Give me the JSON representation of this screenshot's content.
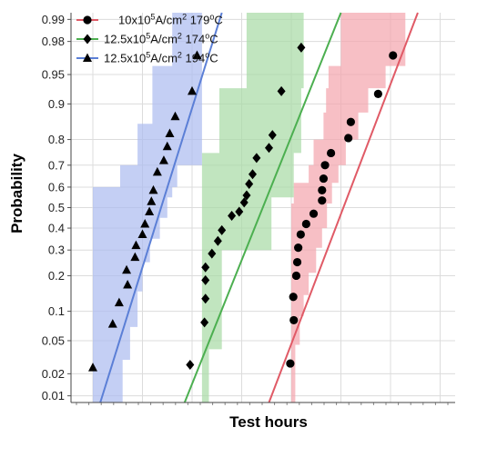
{
  "chart_data": {
    "type": "scatter",
    "title": "",
    "xlabel": "Test hours",
    "ylabel": "Probability",
    "x_scale": "log",
    "x_tick_labels": [],
    "y_scale": "normal-probability",
    "y_ticks": [
      0.01,
      0.02,
      0.05,
      0.1,
      0.2,
      0.3,
      0.4,
      0.5,
      0.6,
      0.7,
      0.8,
      0.9,
      0.95,
      0.98,
      0.99
    ],
    "y_tick_labels": [
      "0.01",
      "0.02",
      "0.05",
      "0.1",
      "0.2",
      "0.3",
      "0.4",
      "0.5",
      "0.6",
      "0.7",
      "0.8",
      "0.9",
      "0.95",
      "0.98",
      "0.99"
    ],
    "x_unit_note": "x values are unitless positions on an unlabeled log time axis (1 = first minor tick)",
    "xlim": [
      1,
      7.8
    ],
    "ylim": [
      0.008,
      0.992
    ],
    "grid": true,
    "legend_position": "top-left",
    "series": [
      {
        "legend_main": "10x10",
        "legend_sup": "5",
        "legend_mid": "A/cm",
        "legend_sup2": "2",
        "legend_temp": " 179",
        "legend_sup3": "o",
        "legend_end": "C",
        "marker": "circle",
        "color": "#000000",
        "line_color": "#e05a66",
        "band_color": "#f4a6ae",
        "fit_line": {
          "x": [
            4.55,
            7.55
          ],
          "p": [
            0.006,
            0.995
          ]
        },
        "points": [
          {
            "x": 4.98,
            "p": 0.027
          },
          {
            "x": 5.05,
            "p": 0.082
          },
          {
            "x": 5.04,
            "p": 0.135
          },
          {
            "x": 5.1,
            "p": 0.2
          },
          {
            "x": 5.12,
            "p": 0.25
          },
          {
            "x": 5.14,
            "p": 0.31
          },
          {
            "x": 5.19,
            "p": 0.37
          },
          {
            "x": 5.3,
            "p": 0.42
          },
          {
            "x": 5.45,
            "p": 0.47
          },
          {
            "x": 5.62,
            "p": 0.535
          },
          {
            "x": 5.62,
            "p": 0.585
          },
          {
            "x": 5.65,
            "p": 0.64
          },
          {
            "x": 5.68,
            "p": 0.7
          },
          {
            "x": 5.8,
            "p": 0.75
          },
          {
            "x": 6.15,
            "p": 0.805
          },
          {
            "x": 6.2,
            "p": 0.855
          },
          {
            "x": 6.75,
            "p": 0.92
          },
          {
            "x": 7.05,
            "p": 0.97
          }
        ],
        "band": [
          {
            "p": 0.008,
            "lo": 5.0,
            "hi": 5.08
          },
          {
            "p": 0.035,
            "lo": 5.0,
            "hi": 5.08
          },
          {
            "p": 0.045,
            "lo": 5.0,
            "hi": 5.17
          },
          {
            "p": 0.09,
            "lo": 5.0,
            "hi": 5.25
          },
          {
            "p": 0.14,
            "lo": 5.0,
            "hi": 5.35
          },
          {
            "p": 0.21,
            "lo": 5.0,
            "hi": 5.5
          },
          {
            "p": 0.31,
            "lo": 5.0,
            "hi": 5.62
          },
          {
            "p": 0.4,
            "lo": 5.0,
            "hi": 5.72
          },
          {
            "p": 0.52,
            "lo": 5.05,
            "hi": 5.82
          },
          {
            "p": 0.62,
            "lo": 5.35,
            "hi": 5.95
          },
          {
            "p": 0.7,
            "lo": 5.45,
            "hi": 6.1
          },
          {
            "p": 0.8,
            "lo": 5.65,
            "hi": 6.35
          },
          {
            "p": 0.88,
            "lo": 5.7,
            "hi": 6.55
          },
          {
            "p": 0.93,
            "lo": 5.75,
            "hi": 6.9
          },
          {
            "p": 0.96,
            "lo": 6.0,
            "hi": 7.3
          },
          {
            "p": 0.992,
            "lo": 6.35,
            "hi": 7.3
          }
        ]
      },
      {
        "legend_main": "12.5x10",
        "legend_sup": "5",
        "legend_mid": "A/cm",
        "legend_sup2": "2",
        "legend_temp": " 174",
        "legend_sup3": "o",
        "legend_end": "C",
        "marker": "diamond",
        "color": "#000000",
        "line_color": "#4caf50",
        "band_color": "#a9dba6",
        "fit_line": {
          "x": [
            2.85,
            6.0
          ],
          "p": [
            0.006,
            0.995
          ]
        },
        "points": [
          {
            "x": 2.96,
            "p": 0.026
          },
          {
            "x": 3.25,
            "p": 0.078
          },
          {
            "x": 3.27,
            "p": 0.13
          },
          {
            "x": 3.27,
            "p": 0.185
          },
          {
            "x": 3.27,
            "p": 0.23
          },
          {
            "x": 3.4,
            "p": 0.285
          },
          {
            "x": 3.52,
            "p": 0.34
          },
          {
            "x": 3.6,
            "p": 0.39
          },
          {
            "x": 3.8,
            "p": 0.46
          },
          {
            "x": 3.95,
            "p": 0.48
          },
          {
            "x": 4.05,
            "p": 0.525
          },
          {
            "x": 4.1,
            "p": 0.56
          },
          {
            "x": 4.15,
            "p": 0.615
          },
          {
            "x": 4.22,
            "p": 0.66
          },
          {
            "x": 4.3,
            "p": 0.73
          },
          {
            "x": 4.55,
            "p": 0.77
          },
          {
            "x": 4.62,
            "p": 0.815
          },
          {
            "x": 4.8,
            "p": 0.925
          },
          {
            "x": 5.2,
            "p": 0.976
          }
        ],
        "band": [
          {
            "p": 0.008,
            "lo": 3.2,
            "hi": 3.34
          },
          {
            "p": 0.03,
            "lo": 3.2,
            "hi": 3.34
          },
          {
            "p": 0.04,
            "lo": 3.2,
            "hi": 3.6
          },
          {
            "p": 0.3,
            "lo": 3.2,
            "hi": 4.6
          },
          {
            "p": 0.55,
            "lo": 3.2,
            "hi": 5.05
          },
          {
            "p": 0.75,
            "lo": 3.55,
            "hi": 5.2
          },
          {
            "p": 0.93,
            "lo": 4.1,
            "hi": 5.25
          },
          {
            "p": 0.992,
            "lo": 4.7,
            "hi": 5.25
          }
        ]
      },
      {
        "legend_main": "12.5x10",
        "legend_sup": "5",
        "legend_mid": "A/cm",
        "legend_sup2": "2",
        "legend_temp": " 194",
        "legend_sup3": "o",
        "legend_end": "C",
        "marker": "triangle",
        "color": "#000000",
        "line_color": "#5b7fd6",
        "band_color": "#adbdf0",
        "fit_line": {
          "x": [
            1.15,
            3.6
          ],
          "p": [
            0.006,
            0.995
          ]
        },
        "points": [
          {
            "x": 1.0,
            "p": 0.024
          },
          {
            "x": 1.4,
            "p": 0.075
          },
          {
            "x": 1.53,
            "p": 0.12
          },
          {
            "x": 1.7,
            "p": 0.17
          },
          {
            "x": 1.68,
            "p": 0.22
          },
          {
            "x": 1.85,
            "p": 0.27
          },
          {
            "x": 1.87,
            "p": 0.32
          },
          {
            "x": 2.0,
            "p": 0.37
          },
          {
            "x": 2.05,
            "p": 0.42
          },
          {
            "x": 2.14,
            "p": 0.48
          },
          {
            "x": 2.18,
            "p": 0.53
          },
          {
            "x": 2.22,
            "p": 0.585
          },
          {
            "x": 2.3,
            "p": 0.67
          },
          {
            "x": 2.43,
            "p": 0.72
          },
          {
            "x": 2.5,
            "p": 0.775
          },
          {
            "x": 2.55,
            "p": 0.82
          },
          {
            "x": 2.66,
            "p": 0.87
          },
          {
            "x": 3.0,
            "p": 0.925
          },
          {
            "x": 3.1,
            "p": 0.97
          }
        ],
        "band": [
          {
            "p": 0.008,
            "lo": 1.0,
            "hi": 1.6
          },
          {
            "p": 0.015,
            "lo": 1.0,
            "hi": 1.6
          },
          {
            "p": 0.03,
            "lo": 1.0,
            "hi": 1.75
          },
          {
            "p": 0.07,
            "lo": 1.0,
            "hi": 1.9
          },
          {
            "p": 0.15,
            "lo": 1.0,
            "hi": 2.0
          },
          {
            "p": 0.25,
            "lo": 1.0,
            "hi": 2.15
          },
          {
            "p": 0.35,
            "lo": 1.0,
            "hi": 2.35
          },
          {
            "p": 0.45,
            "lo": 1.0,
            "hi": 2.5
          },
          {
            "p": 0.55,
            "lo": 1.0,
            "hi": 2.6
          },
          {
            "p": 0.6,
            "lo": 1.55,
            "hi": 2.7
          },
          {
            "p": 0.7,
            "lo": 1.9,
            "hi": 3.2
          },
          {
            "p": 0.85,
            "lo": 2.2,
            "hi": 3.2
          },
          {
            "p": 0.96,
            "lo": 2.6,
            "hi": 3.2
          },
          {
            "p": 0.992,
            "lo": 2.8,
            "hi": 3.2
          }
        ]
      }
    ]
  }
}
